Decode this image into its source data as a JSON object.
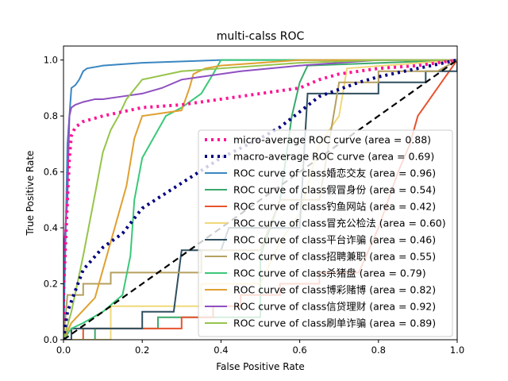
{
  "chart_data": {
    "type": "line",
    "title": "multi-calss ROC",
    "xlabel": "False Positive Rate",
    "ylabel": "True Positive Rate",
    "xlim": [
      0.0,
      1.0
    ],
    "ylim": [
      0.0,
      1.05
    ],
    "x_ticks": [
      "0.0",
      "0.2",
      "0.4",
      "0.6",
      "0.8",
      "1.0"
    ],
    "y_ticks": [
      "0.0",
      "0.2",
      "0.4",
      "0.6",
      "0.8",
      "1.0"
    ],
    "grid": false,
    "legend_position": "lower-right",
    "series": [
      {
        "name": "micro-average ROC curve (area = 0.88)",
        "color": "#ff1493",
        "style": "dotted",
        "points": [
          [
            0,
            0
          ],
          [
            0,
            0.17
          ],
          [
            0.01,
            0.5
          ],
          [
            0.015,
            0.65
          ],
          [
            0.02,
            0.73
          ],
          [
            0.03,
            0.76
          ],
          [
            0.05,
            0.78
          ],
          [
            0.1,
            0.8
          ],
          [
            0.2,
            0.83
          ],
          [
            0.3,
            0.84
          ],
          [
            0.4,
            0.86
          ],
          [
            0.5,
            0.88
          ],
          [
            0.6,
            0.9
          ],
          [
            0.65,
            0.93
          ],
          [
            0.7,
            0.95
          ],
          [
            0.8,
            0.97
          ],
          [
            0.9,
            0.98
          ],
          [
            1.0,
            1.0
          ]
        ]
      },
      {
        "name": "macro-average ROC curve (area = 0.69)",
        "color": "#000080",
        "style": "dotted",
        "points": [
          [
            0,
            0
          ],
          [
            0.01,
            0.1
          ],
          [
            0.05,
            0.25
          ],
          [
            0.1,
            0.33
          ],
          [
            0.15,
            0.38
          ],
          [
            0.2,
            0.47
          ],
          [
            0.3,
            0.56
          ],
          [
            0.4,
            0.65
          ],
          [
            0.5,
            0.72
          ],
          [
            0.55,
            0.76
          ],
          [
            0.65,
            0.87
          ],
          [
            0.75,
            0.92
          ],
          [
            0.8,
            0.94
          ],
          [
            0.9,
            0.97
          ],
          [
            1.0,
            1.0
          ]
        ]
      },
      {
        "name": "ROC curve of class婚恋交友 (area = 0.96)",
        "color": "#3a86c1",
        "style": "solid",
        "points": [
          [
            0,
            0
          ],
          [
            0.01,
            0.7
          ],
          [
            0.02,
            0.9
          ],
          [
            0.03,
            0.91
          ],
          [
            0.04,
            0.93
          ],
          [
            0.05,
            0.96
          ],
          [
            0.06,
            0.97
          ],
          [
            0.1,
            0.98
          ],
          [
            0.2,
            0.99
          ],
          [
            0.4,
            1.0
          ],
          [
            1.0,
            1.0
          ]
        ]
      },
      {
        "name": "ROC curve of class假冒身份 (area = 0.54)",
        "color": "#3aa86c",
        "style": "solid",
        "points": [
          [
            0,
            0
          ],
          [
            0.08,
            0
          ],
          [
            0.08,
            0.04
          ],
          [
            0.24,
            0.04
          ],
          [
            0.24,
            0.08
          ],
          [
            0.5,
            0.08
          ],
          [
            0.5,
            0.3
          ],
          [
            0.55,
            0.5
          ],
          [
            0.58,
            0.8
          ],
          [
            0.6,
            0.92
          ],
          [
            0.62,
            0.98
          ],
          [
            1.0,
            1.0
          ]
        ]
      },
      {
        "name": "ROC curve of class钓鱼网站 (area = 0.42)",
        "color": "#e8532e",
        "style": "solid",
        "points": [
          [
            0,
            0
          ],
          [
            0.05,
            0
          ],
          [
            0.05,
            0.04
          ],
          [
            0.3,
            0.04
          ],
          [
            0.3,
            0.08
          ],
          [
            0.38,
            0.08
          ],
          [
            0.38,
            0.12
          ],
          [
            0.45,
            0.12
          ],
          [
            0.45,
            0.16
          ],
          [
            0.55,
            0.16
          ],
          [
            0.55,
            0.2
          ],
          [
            0.65,
            0.2
          ],
          [
            0.65,
            0.24
          ],
          [
            0.75,
            0.24
          ],
          [
            0.8,
            0.4
          ],
          [
            0.85,
            0.6
          ],
          [
            0.88,
            0.7
          ],
          [
            0.9,
            0.8
          ],
          [
            0.95,
            0.9
          ],
          [
            1.0,
            1.0
          ]
        ]
      },
      {
        "name": "ROC curve of class冒充公检法 (area = 0.60)",
        "color": "#f0d878",
        "style": "solid",
        "points": [
          [
            0,
            0
          ],
          [
            0.12,
            0
          ],
          [
            0.12,
            0.12
          ],
          [
            0.35,
            0.12
          ],
          [
            0.35,
            0.2
          ],
          [
            0.5,
            0.2
          ],
          [
            0.55,
            0.35
          ],
          [
            0.6,
            0.45
          ],
          [
            0.62,
            0.55
          ],
          [
            0.65,
            0.7
          ],
          [
            0.7,
            0.8
          ],
          [
            0.72,
            0.97
          ],
          [
            1.0,
            1.0
          ]
        ]
      },
      {
        "name": "ROC curve of class平台诈骗 (area = 0.46)",
        "color": "#2f4f5f",
        "style": "solid",
        "points": [
          [
            0,
            0
          ],
          [
            0.02,
            0
          ],
          [
            0.02,
            0.04
          ],
          [
            0.2,
            0.04
          ],
          [
            0.2,
            0.1
          ],
          [
            0.28,
            0.1
          ],
          [
            0.3,
            0.32
          ],
          [
            0.4,
            0.32
          ],
          [
            0.42,
            0.4
          ],
          [
            0.6,
            0.4
          ],
          [
            0.62,
            0.88
          ],
          [
            0.8,
            0.88
          ],
          [
            0.8,
            0.92
          ],
          [
            0.92,
            0.92
          ],
          [
            0.92,
            0.96
          ],
          [
            1.0,
            0.96
          ],
          [
            1.0,
            1.0
          ]
        ]
      },
      {
        "name": "ROC curve of class招聘兼职 (area = 0.55)",
        "color": "#b5a060",
        "style": "solid",
        "points": [
          [
            0,
            0
          ],
          [
            0.01,
            0.16
          ],
          [
            0.05,
            0.16
          ],
          [
            0.05,
            0.2
          ],
          [
            0.12,
            0.2
          ],
          [
            0.12,
            0.24
          ],
          [
            0.35,
            0.24
          ],
          [
            0.35,
            0.32
          ],
          [
            0.5,
            0.32
          ],
          [
            0.55,
            0.5
          ],
          [
            0.65,
            0.5
          ],
          [
            0.7,
            0.92
          ],
          [
            0.8,
            0.92
          ],
          [
            0.8,
            0.96
          ],
          [
            0.95,
            0.96
          ],
          [
            1.0,
            1.0
          ]
        ]
      },
      {
        "name": "ROC curve of class杀猪盘 (area = 0.79)",
        "color": "#3ac878",
        "style": "solid",
        "points": [
          [
            0,
            0
          ],
          [
            0.02,
            0.04
          ],
          [
            0.05,
            0.06
          ],
          [
            0.1,
            0.1
          ],
          [
            0.15,
            0.16
          ],
          [
            0.17,
            0.3
          ],
          [
            0.18,
            0.5
          ],
          [
            0.2,
            0.65
          ],
          [
            0.26,
            0.8
          ],
          [
            0.3,
            0.83
          ],
          [
            0.35,
            0.88
          ],
          [
            0.38,
            0.95
          ],
          [
            0.4,
            1.0
          ],
          [
            1.0,
            1.0
          ]
        ]
      },
      {
        "name": "ROC curve of class博彩赌博 (area = 0.82)",
        "color": "#e0a030",
        "style": "solid",
        "points": [
          [
            0,
            0
          ],
          [
            0.02,
            0.06
          ],
          [
            0.08,
            0.15
          ],
          [
            0.14,
            0.45
          ],
          [
            0.16,
            0.55
          ],
          [
            0.18,
            0.72
          ],
          [
            0.2,
            0.8
          ],
          [
            0.3,
            0.82
          ],
          [
            0.32,
            0.9
          ],
          [
            0.33,
            0.95
          ],
          [
            0.36,
            0.97
          ],
          [
            0.4,
            0.98
          ],
          [
            0.6,
            1.0
          ],
          [
            1.0,
            1.0
          ]
        ]
      },
      {
        "name": "ROC curve of class信贷理财 (area = 0.92)",
        "color": "#8e4fc0",
        "style": "solid",
        "points": [
          [
            0,
            0
          ],
          [
            0.0,
            0.3
          ],
          [
            0.01,
            0.5
          ],
          [
            0.015,
            0.8
          ],
          [
            0.02,
            0.83
          ],
          [
            0.03,
            0.84
          ],
          [
            0.05,
            0.85
          ],
          [
            0.08,
            0.86
          ],
          [
            0.1,
            0.86
          ],
          [
            0.15,
            0.87
          ],
          [
            0.2,
            0.88
          ],
          [
            0.25,
            0.9
          ],
          [
            0.3,
            0.93
          ],
          [
            0.45,
            0.96
          ],
          [
            0.6,
            0.98
          ],
          [
            0.8,
            1.0
          ],
          [
            1.0,
            1.0
          ]
        ]
      },
      {
        "name": "ROC curve of class刷单诈骗 (area = 0.89)",
        "color": "#96c44a",
        "style": "solid",
        "points": [
          [
            0,
            0
          ],
          [
            0.02,
            0.1
          ],
          [
            0.05,
            0.3
          ],
          [
            0.08,
            0.52
          ],
          [
            0.1,
            0.67
          ],
          [
            0.12,
            0.75
          ],
          [
            0.14,
            0.8
          ],
          [
            0.16,
            0.86
          ],
          [
            0.2,
            0.93
          ],
          [
            0.3,
            0.96
          ],
          [
            0.4,
            0.97
          ],
          [
            0.6,
            0.99
          ],
          [
            0.8,
            1.0
          ],
          [
            1.0,
            1.0
          ]
        ]
      }
    ],
    "reference_line": {
      "color": "#000000",
      "style": "dashed",
      "points": [
        [
          0,
          0
        ],
        [
          1,
          1
        ]
      ]
    }
  }
}
